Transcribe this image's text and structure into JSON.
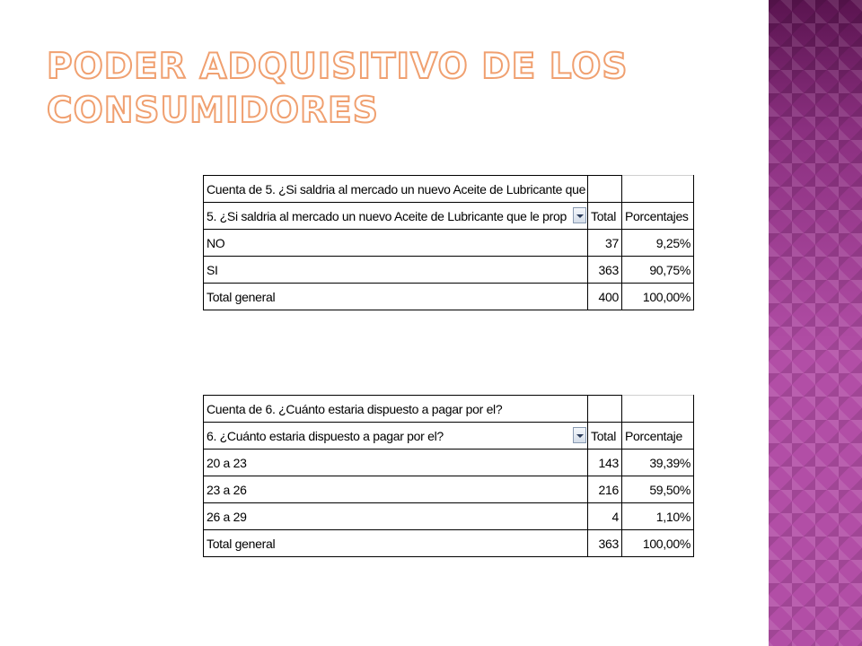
{
  "slide": {
    "title_line1": "PODER ADQUISITIVO DE LOS",
    "title_line2": "CONSUMIDORES"
  },
  "table1": {
    "header": "Cuenta de 5. ¿Si saldria al mercado un nuevo Aceite de Lubricante que",
    "field_label": "5. ¿Si saldria al mercado un nuevo Aceite de Lubricante que le prop",
    "col_total": "Total",
    "col_percent": "Porcentajes",
    "rows": [
      {
        "label": "NO",
        "total": "37",
        "percent": "9,25%"
      },
      {
        "label": "SI",
        "total": "363",
        "percent": "90,75%"
      },
      {
        "label": "Total general",
        "total": "400",
        "percent": "100,00%"
      }
    ]
  },
  "table2": {
    "header": "Cuenta de 6. ¿Cuánto estaria dispuesto a pagar por el?",
    "field_label": "6. ¿Cuánto estaria dispuesto a pagar por el?",
    "col_total": "Total",
    "col_percent": "Porcentaje",
    "rows": [
      {
        "label": "20 a 23",
        "total": "143",
        "percent": "39,39%"
      },
      {
        "label": "23 a 26",
        "total": "216",
        "percent": "59,50%"
      },
      {
        "label": "26 a 29",
        "total": "4",
        "percent": "1,10%"
      },
      {
        "label": "Total general",
        "total": "363",
        "percent": "100,00%"
      }
    ]
  },
  "colors": {
    "title_outline": "#f0a070",
    "side_band": "#b24ea6"
  },
  "icons": {
    "dropdown": "filter-dropdown-icon"
  }
}
